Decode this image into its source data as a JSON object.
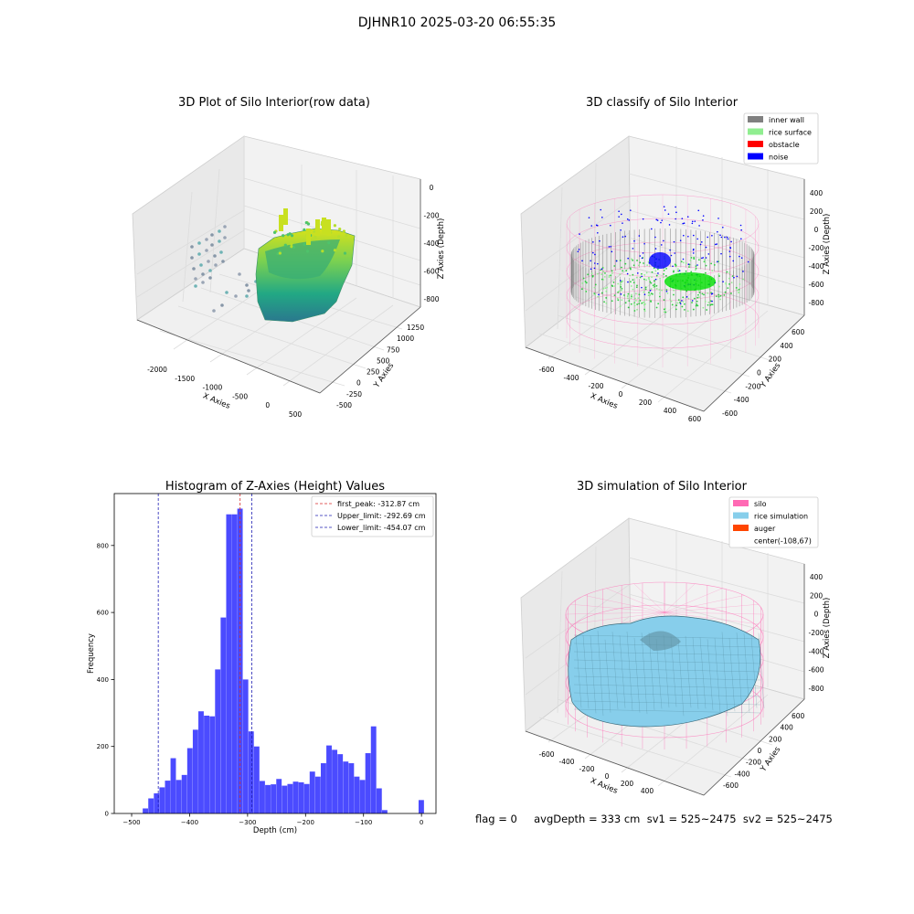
{
  "suptitle": "DJHNR10 2025-03-20 06:55:35",
  "colors": {
    "hist_bar": "#4b4bff",
    "peak_line": "#d62728",
    "limit_line": "#1f1fb4",
    "inner_wall": "#808080",
    "rice_surface": "#90ee90",
    "obstacle": "#ff0000",
    "noise": "#0000ff",
    "silo": "#ff69b4",
    "rice_simulation": "#87ceeb",
    "auger": "#ff4500"
  },
  "chart_data": [
    {
      "type": "scatter",
      "title": "3D Plot of Silo Interior(row data)",
      "xlabel": "X Axies",
      "ylabel": "Y Axies",
      "zlabel": "Z Axies (Depth)",
      "x_ticks": [
        "-2000",
        "-1500",
        "-1000",
        "-500",
        "0",
        "500"
      ],
      "y_ticks": [
        "-500",
        "-250",
        "0",
        "250",
        "500",
        "750",
        "1000",
        "1250"
      ],
      "z_ticks": [
        "0",
        "-200",
        "-400",
        "-600",
        "-800"
      ],
      "colormap": "viridis",
      "grid": true
    },
    {
      "type": "scatter",
      "title": "3D classify of Silo Interior",
      "xlabel": "X Axies",
      "ylabel": "Y Axies",
      "zlabel": "Z Axies (Depth)",
      "x_ticks": [
        "-600",
        "-400",
        "-200",
        "0",
        "200",
        "400",
        "600"
      ],
      "y_ticks": [
        "-600",
        "-400",
        "-200",
        "0",
        "200",
        "400",
        "600"
      ],
      "z_ticks": [
        "400",
        "200",
        "0",
        "-200",
        "-400",
        "-600",
        "-800"
      ],
      "legend": [
        "inner wall",
        "rice surface",
        "obstacle",
        "noise"
      ],
      "legend_position": "top-right",
      "grid": true
    },
    {
      "type": "bar",
      "title": "Histogram of Z-Axies (Height) Values",
      "xlabel": "Depth (cm)",
      "ylabel": "Frequency",
      "xlim": [
        -530,
        25
      ],
      "ylim": [
        0,
        955
      ],
      "x_ticks": [
        -500,
        -400,
        -300,
        -200,
        -100,
        0
      ],
      "y_ticks": [
        0,
        200,
        400,
        600,
        800
      ],
      "bin_width": 9.6,
      "bins": [
        [
          -480.9,
          15
        ],
        [
          -471.3,
          45
        ],
        [
          -461.7,
          60
        ],
        [
          -452.1,
          78
        ],
        [
          -442.5,
          98
        ],
        [
          -432.9,
          165
        ],
        [
          -423.3,
          100
        ],
        [
          -413.7,
          115
        ],
        [
          -404.1,
          195
        ],
        [
          -394.5,
          250
        ],
        [
          -384.9,
          305
        ],
        [
          -375.3,
          292
        ],
        [
          -365.7,
          290
        ],
        [
          -356.1,
          430
        ],
        [
          -346.5,
          585
        ],
        [
          -336.9,
          893
        ],
        [
          -327.3,
          893
        ],
        [
          -317.7,
          910
        ],
        [
          -308.1,
          400
        ],
        [
          -298.5,
          245
        ],
        [
          -288.9,
          200
        ],
        [
          -279.3,
          97
        ],
        [
          -269.7,
          85
        ],
        [
          -260.1,
          87
        ],
        [
          -250.5,
          103
        ],
        [
          -240.9,
          83
        ],
        [
          -231.3,
          88
        ],
        [
          -221.7,
          95
        ],
        [
          -212.1,
          93
        ],
        [
          -202.5,
          88
        ],
        [
          -192.9,
          125
        ],
        [
          -183.3,
          110
        ],
        [
          -173.7,
          150
        ],
        [
          -164.1,
          203
        ],
        [
          -154.5,
          190
        ],
        [
          -144.9,
          177
        ],
        [
          -135.3,
          155
        ],
        [
          -125.7,
          150
        ],
        [
          -116.1,
          110
        ],
        [
          -106.5,
          100
        ],
        [
          -96.9,
          180
        ],
        [
          -87.3,
          260
        ],
        [
          -77.7,
          75
        ],
        [
          -68.1,
          10
        ],
        [
          -5.0,
          40
        ]
      ],
      "lines": [
        {
          "label": "first_peak: -312.87 cm",
          "x": -312.87,
          "style": "dashed"
        },
        {
          "label": "Upper_limit: -292.69 cm",
          "x": -292.69,
          "style": "dashed"
        },
        {
          "label": "Lower_limit: -454.07 cm",
          "x": -454.07,
          "style": "dashed"
        }
      ],
      "legend_position": "top-right"
    },
    {
      "type": "area",
      "title": "3D simulation of Silo Interior",
      "xlabel": "X Axies",
      "ylabel": "Y Axies",
      "zlabel": "Z Axies (Depth)",
      "x_ticks": [
        "-600",
        "-400",
        "-200",
        "0",
        "200",
        "400"
      ],
      "y_ticks": [
        "-600",
        "-400",
        "-200",
        "0",
        "200",
        "400",
        "600"
      ],
      "z_ticks": [
        "400",
        "200",
        "0",
        "-200",
        "-400",
        "-600",
        "-800"
      ],
      "legend": [
        "silo",
        "rice simulation",
        "auger",
        "center(-108,67)"
      ],
      "legend_position": "top-right",
      "grid": true
    }
  ],
  "footer": "flag = 0     avgDepth = 333 cm  sv1 = 525~2475  sv2 = 525~2475"
}
